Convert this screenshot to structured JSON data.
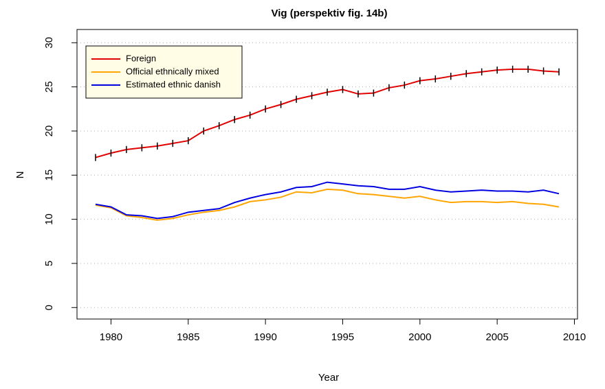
{
  "chart_data": {
    "type": "line",
    "title": "Vig (perspektiv fig. 14b)",
    "x_label": "Year",
    "y_label": "N",
    "x": [
      1979,
      1980,
      1981,
      1982,
      1983,
      1984,
      1985,
      1986,
      1987,
      1988,
      1989,
      1990,
      1991,
      1992,
      1993,
      1994,
      1995,
      1996,
      1997,
      1998,
      1999,
      2000,
      2001,
      2002,
      2003,
      2004,
      2005,
      2006,
      2007,
      2008,
      2009
    ],
    "series": [
      {
        "name": "Foreign",
        "color": "#e00000",
        "values": [
          17.0,
          17.5,
          17.9,
          18.1,
          18.3,
          18.6,
          18.9,
          20.0,
          20.6,
          21.3,
          21.8,
          22.5,
          23.0,
          23.6,
          24.0,
          24.4,
          24.7,
          24.2,
          24.3,
          24.9,
          25.2,
          25.7,
          25.9,
          26.2,
          26.5,
          26.7,
          26.9,
          27.0,
          27.0,
          26.8,
          26.7
        ],
        "errors": [
          0.4,
          0.4,
          0.4,
          0.4,
          0.4,
          0.4,
          0.4,
          0.4,
          0.4,
          0.4,
          0.4,
          0.4,
          0.4,
          0.4,
          0.4,
          0.4,
          0.4,
          0.4,
          0.4,
          0.4,
          0.4,
          0.4,
          0.4,
          0.4,
          0.4,
          0.4,
          0.4,
          0.4,
          0.4,
          0.4,
          0.4
        ]
      },
      {
        "name": "Official ethnically mixed",
        "color": "#ffa500",
        "values": [
          11.6,
          11.3,
          10.4,
          10.2,
          9.9,
          10.1,
          10.5,
          10.8,
          11.0,
          11.4,
          12.0,
          12.2,
          12.5,
          13.1,
          13.0,
          13.4,
          13.3,
          12.9,
          12.8,
          12.6,
          12.4,
          12.6,
          12.2,
          11.9,
          12.0,
          12.0,
          11.9,
          12.0,
          11.8,
          11.7,
          11.4
        ]
      },
      {
        "name": "Estimated ethnic danish",
        "color": "#0000e0",
        "values": [
          11.7,
          11.4,
          10.5,
          10.4,
          10.1,
          10.3,
          10.8,
          11.0,
          11.2,
          11.9,
          12.4,
          12.8,
          13.1,
          13.6,
          13.7,
          14.2,
          14.0,
          13.8,
          13.7,
          13.4,
          13.4,
          13.7,
          13.3,
          13.1,
          13.2,
          13.3,
          13.2,
          13.2,
          13.1,
          13.3,
          12.9
        ]
      }
    ],
    "xlim": [
      1977.8,
      2010.2
    ],
    "xticks": [
      1980,
      1985,
      1990,
      1995,
      2000,
      2005,
      2010
    ],
    "ylim": [
      -1.3,
      31.5
    ],
    "yticks": [
      0,
      5,
      10,
      15,
      20,
      25,
      30
    ],
    "grid": true,
    "legend": "top-left"
  }
}
